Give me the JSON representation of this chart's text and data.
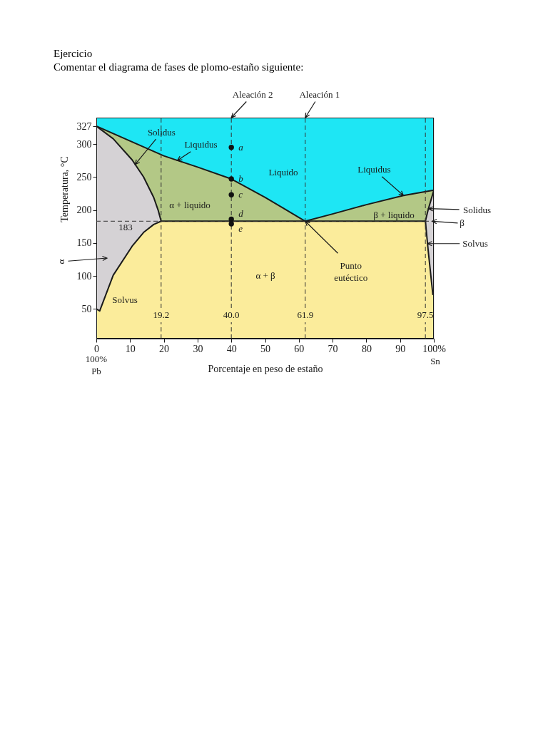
{
  "chart_data": {
    "type": "area",
    "title": "Ejercicio",
    "subtitle": "Comentar el diagrama de fases de plomo-estaño siguiente:",
    "xlabel": "Porcentaje en peso de estaño",
    "ylabel": "Temperatura, °C",
    "xlim": [
      0,
      100
    ],
    "ylim": [
      5,
      340
    ],
    "xticks": [
      0,
      10,
      20,
      30,
      40,
      50,
      60,
      70,
      80,
      90,
      {
        "value": 100,
        "label": "100%"
      }
    ],
    "yticks": [
      50,
      100,
      150,
      200,
      250,
      300,
      327
    ],
    "series": [
      {
        "color": "#1ee6f4",
        "x": [
          0,
          100
        ],
        "values": [
          340,
          340
        ]
      },
      {
        "color": "#b3c886",
        "x": [
          0,
          20,
          30,
          40,
          50,
          55,
          61.9,
          70,
          80,
          91,
          100
        ],
        "values": [
          327,
          282,
          265,
          247,
          219,
          204,
          183,
          194,
          208,
          222,
          230
        ]
      },
      {
        "color": "#d5d2d5",
        "x": [
          0,
          5,
          10.6,
          14,
          17,
          18.3,
          19.2
        ],
        "values": [
          327,
          308,
          276,
          250,
          219,
          200,
          183
        ]
      },
      {
        "color": "#d5d2d5",
        "x": [
          97.5,
          98.3,
          100
        ],
        "values": [
          183,
          200,
          230
        ]
      },
      {
        "color": "#fbec9b",
        "x": [
          0,
          1,
          5,
          10.6,
          14,
          17,
          19.2,
          97.5,
          98.3,
          99.7,
          100
        ],
        "values": [
          50,
          47,
          101,
          145,
          166,
          178,
          183,
          183,
          140,
          72,
          72
        ]
      },
      {
        "type": "scatter",
        "color": "#111111",
        "marker": "circle",
        "x": [
          40,
          40,
          40,
          40,
          40
        ],
        "values": [
          295,
          247,
          223,
          186,
          179
        ],
        "value_labels": [
          "a",
          "b",
          "c",
          "d",
          "e"
        ]
      }
    ],
    "ref_lines": [
      {
        "axis": "x",
        "value": 19.2,
        "label": "19.2",
        "line_style": "dashed",
        "color": "#333333"
      },
      {
        "axis": "x",
        "value": 40.0,
        "label": "40.0",
        "line_style": "dashed",
        "color": "#333333"
      },
      {
        "axis": "x",
        "value": 61.9,
        "label": "61.9",
        "line_style": "dashed",
        "color": "#333333"
      },
      {
        "axis": "x",
        "value": 97.5,
        "label": "97.5",
        "line_style": "dashed",
        "color": "#333333"
      },
      {
        "axis": "y",
        "value": 183,
        "label": "183",
        "line_style": "dashed",
        "color": "#333333"
      }
    ],
    "annotations": [
      {
        "text": "Aleación 2",
        "x": 40.0,
        "y": 340
      },
      {
        "text": "Aleación 1",
        "x": 61.9,
        "y": 340
      },
      {
        "text": "Solidus",
        "x": 11.5,
        "y": 269
      },
      {
        "text": "Liquidus",
        "x": 24,
        "y": 275
      },
      "Liquido",
      {
        "text": "Liquidus",
        "x": 91,
        "y": 222
      },
      "α + liquido",
      "β + liquido",
      {
        "text": "Solidus",
        "x": 98.4,
        "y": 202
      },
      {
        "text": "β",
        "x": 99.5,
        "y": 183
      },
      {
        "text": "Solvus",
        "x": 98.1,
        "y": 149
      },
      "α",
      {
        "text": "Punto\neutéctico",
        "x": 61.9,
        "y": 183
      },
      "α + β",
      "Solvus",
      "100%\nPb",
      "Sn"
    ]
  }
}
